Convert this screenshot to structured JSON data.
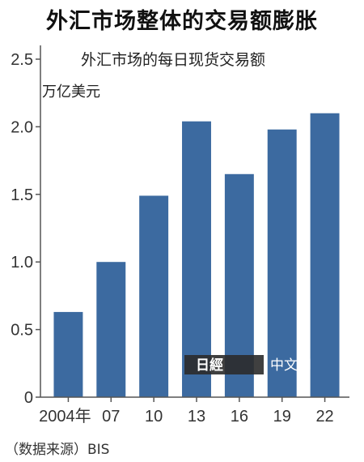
{
  "headline": "外汇市场整体的交易额膨胀",
  "source": "（数据来源）BIS",
  "watermark": {
    "logo_text": "日經",
    "label": "中文网"
  },
  "colors": {
    "bar": "#3c6aa0",
    "axis": "#555555",
    "text": "#222222"
  },
  "chart_data": {
    "type": "bar",
    "title": "外汇市场的每日现货交易额",
    "ylabel": "万亿美元",
    "xlabel": "",
    "categories": [
      "2004年",
      "07",
      "10",
      "13",
      "16",
      "19",
      "22"
    ],
    "values": [
      0.63,
      1.0,
      1.49,
      2.04,
      1.65,
      1.98,
      2.1
    ],
    "ylim": [
      0,
      2.5
    ],
    "yticks": [
      "0",
      "0.5",
      "1.0",
      "1.5",
      "2.0",
      "2.5"
    ],
    "grid": false
  }
}
